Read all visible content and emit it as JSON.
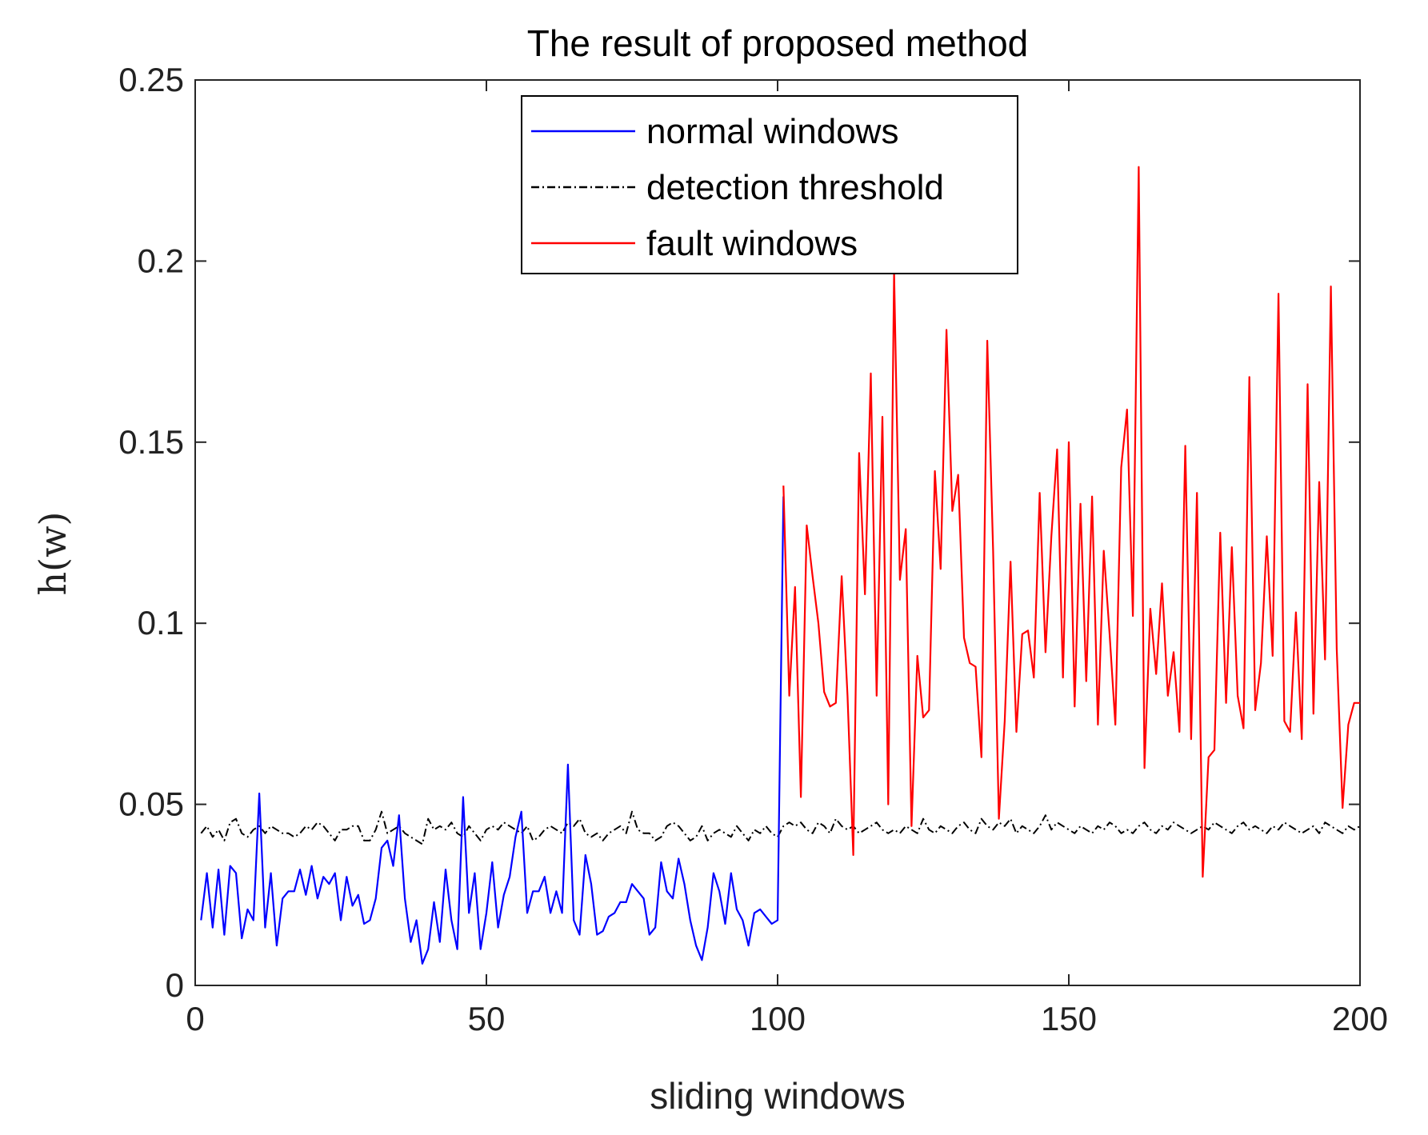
{
  "chart_data": {
    "type": "line",
    "title": "The result of proposed method",
    "xlabel": "sliding windows",
    "ylabel": "h(w)",
    "xlim": [
      0,
      200
    ],
    "ylim": [
      0,
      0.25
    ],
    "xticks": [
      0,
      50,
      100,
      150,
      200
    ],
    "xtick_labels": [
      "0",
      "50",
      "100",
      "150",
      "200"
    ],
    "yticks": [
      0,
      0.05,
      0.1,
      0.15,
      0.2,
      0.25
    ],
    "ytick_labels": [
      "0",
      "0.05",
      "0.1",
      "0.15",
      "0.2",
      "0.25"
    ],
    "legend_position": "top-center",
    "series": [
      {
        "name": "normal windows",
        "color": "#0000ff",
        "style": "solid",
        "x": [
          1,
          2,
          3,
          4,
          5,
          6,
          7,
          8,
          9,
          10,
          11,
          12,
          13,
          14,
          15,
          16,
          17,
          18,
          19,
          20,
          21,
          22,
          23,
          24,
          25,
          26,
          27,
          28,
          29,
          30,
          31,
          32,
          33,
          34,
          35,
          36,
          37,
          38,
          39,
          40,
          41,
          42,
          43,
          44,
          45,
          46,
          47,
          48,
          49,
          50,
          51,
          52,
          53,
          54,
          55,
          56,
          57,
          58,
          59,
          60,
          61,
          62,
          63,
          64,
          65,
          66,
          67,
          68,
          69,
          70,
          71,
          72,
          73,
          74,
          75,
          76,
          77,
          78,
          79,
          80,
          81,
          82,
          83,
          84,
          85,
          86,
          87,
          88,
          89,
          90,
          91,
          92,
          93,
          94,
          95,
          96,
          97,
          98,
          99,
          100,
          101
        ],
        "values": [
          0.018,
          0.031,
          0.016,
          0.032,
          0.014,
          0.033,
          0.031,
          0.013,
          0.021,
          0.018,
          0.053,
          0.016,
          0.031,
          0.011,
          0.024,
          0.026,
          0.026,
          0.032,
          0.025,
          0.033,
          0.024,
          0.03,
          0.028,
          0.031,
          0.018,
          0.03,
          0.022,
          0.025,
          0.017,
          0.018,
          0.024,
          0.038,
          0.04,
          0.033,
          0.047,
          0.024,
          0.012,
          0.018,
          0.006,
          0.01,
          0.023,
          0.012,
          0.032,
          0.018,
          0.01,
          0.052,
          0.02,
          0.031,
          0.01,
          0.02,
          0.034,
          0.016,
          0.025,
          0.03,
          0.041,
          0.048,
          0.02,
          0.026,
          0.026,
          0.03,
          0.02,
          0.026,
          0.02,
          0.061,
          0.018,
          0.014,
          0.036,
          0.028,
          0.014,
          0.015,
          0.019,
          0.02,
          0.023,
          0.023,
          0.028,
          0.026,
          0.024,
          0.014,
          0.016,
          0.034,
          0.026,
          0.024,
          0.035,
          0.028,
          0.018,
          0.011,
          0.007,
          0.016,
          0.031,
          0.026,
          0.017,
          0.031,
          0.021,
          0.018,
          0.011,
          0.02,
          0.021,
          0.019,
          0.017,
          0.018,
          0.135
        ]
      },
      {
        "name": "detection threshold",
        "color": "#000000",
        "style": "dashdot",
        "x": [
          1,
          2,
          3,
          4,
          5,
          6,
          7,
          8,
          9,
          10,
          11,
          12,
          13,
          14,
          15,
          16,
          17,
          18,
          19,
          20,
          21,
          22,
          23,
          24,
          25,
          26,
          27,
          28,
          29,
          30,
          31,
          32,
          33,
          34,
          35,
          36,
          37,
          38,
          39,
          40,
          41,
          42,
          43,
          44,
          45,
          46,
          47,
          48,
          49,
          50,
          51,
          52,
          53,
          54,
          55,
          56,
          57,
          58,
          59,
          60,
          61,
          62,
          63,
          64,
          65,
          66,
          67,
          68,
          69,
          70,
          71,
          72,
          73,
          74,
          75,
          76,
          77,
          78,
          79,
          80,
          81,
          82,
          83,
          84,
          85,
          86,
          87,
          88,
          89,
          90,
          91,
          92,
          93,
          94,
          95,
          96,
          97,
          98,
          99,
          100,
          101,
          102,
          103,
          104,
          105,
          106,
          107,
          108,
          109,
          110,
          111,
          112,
          113,
          114,
          115,
          116,
          117,
          118,
          119,
          120,
          121,
          122,
          123,
          124,
          125,
          126,
          127,
          128,
          129,
          130,
          131,
          132,
          133,
          134,
          135,
          136,
          137,
          138,
          139,
          140,
          141,
          142,
          143,
          144,
          145,
          146,
          147,
          148,
          149,
          150,
          151,
          152,
          153,
          154,
          155,
          156,
          157,
          158,
          159,
          160,
          161,
          162,
          163,
          164,
          165,
          166,
          167,
          168,
          169,
          170,
          171,
          172,
          173,
          174,
          175,
          176,
          177,
          178,
          179,
          180,
          181,
          182,
          183,
          184,
          185,
          186,
          187,
          188,
          189,
          190,
          191,
          192,
          193,
          194,
          195,
          196,
          197,
          198,
          199,
          200
        ],
        "values": [
          0.042,
          0.044,
          0.041,
          0.043,
          0.04,
          0.045,
          0.046,
          0.042,
          0.041,
          0.043,
          0.044,
          0.042,
          0.044,
          0.043,
          0.042,
          0.042,
          0.041,
          0.042,
          0.044,
          0.043,
          0.045,
          0.044,
          0.042,
          0.04,
          0.043,
          0.043,
          0.044,
          0.044,
          0.04,
          0.04,
          0.043,
          0.048,
          0.042,
          0.043,
          0.044,
          0.042,
          0.041,
          0.04,
          0.039,
          0.046,
          0.043,
          0.044,
          0.043,
          0.045,
          0.042,
          0.041,
          0.044,
          0.042,
          0.04,
          0.043,
          0.044,
          0.043,
          0.045,
          0.044,
          0.043,
          0.042,
          0.044,
          0.04,
          0.041,
          0.043,
          0.044,
          0.043,
          0.042,
          0.045,
          0.044,
          0.046,
          0.042,
          0.041,
          0.042,
          0.04,
          0.042,
          0.043,
          0.044,
          0.042,
          0.048,
          0.043,
          0.042,
          0.042,
          0.04,
          0.041,
          0.044,
          0.045,
          0.044,
          0.042,
          0.04,
          0.041,
          0.044,
          0.04,
          0.042,
          0.043,
          0.042,
          0.041,
          0.044,
          0.042,
          0.04,
          0.043,
          0.042,
          0.044,
          0.042,
          0.041,
          0.044,
          0.045,
          0.044,
          0.045,
          0.043,
          0.042,
          0.045,
          0.044,
          0.042,
          0.046,
          0.044,
          0.043,
          0.044,
          0.042,
          0.043,
          0.044,
          0.045,
          0.043,
          0.042,
          0.043,
          0.042,
          0.044,
          0.043,
          0.042,
          0.046,
          0.043,
          0.042,
          0.044,
          0.043,
          0.042,
          0.044,
          0.045,
          0.043,
          0.042,
          0.046,
          0.044,
          0.043,
          0.045,
          0.044,
          0.046,
          0.042,
          0.044,
          0.043,
          0.042,
          0.044,
          0.047,
          0.043,
          0.045,
          0.044,
          0.043,
          0.042,
          0.044,
          0.043,
          0.042,
          0.044,
          0.043,
          0.045,
          0.044,
          0.042,
          0.043,
          0.042,
          0.044,
          0.045,
          0.043,
          0.042,
          0.044,
          0.043,
          0.045,
          0.044,
          0.043,
          0.042,
          0.043,
          0.044,
          0.043,
          0.045,
          0.044,
          0.043,
          0.042,
          0.044,
          0.045,
          0.043,
          0.044,
          0.043,
          0.042,
          0.044,
          0.043,
          0.045,
          0.044,
          0.043,
          0.042,
          0.043,
          0.044,
          0.042,
          0.045,
          0.044,
          0.043,
          0.042,
          0.044,
          0.043,
          0.044
        ]
      },
      {
        "name": "fault windows",
        "color": "#ff0000",
        "style": "solid",
        "x": [
          101,
          102,
          103,
          104,
          105,
          106,
          107,
          108,
          109,
          110,
          111,
          112,
          113,
          114,
          115,
          116,
          117,
          118,
          119,
          120,
          121,
          122,
          123,
          124,
          125,
          126,
          127,
          128,
          129,
          130,
          131,
          132,
          133,
          134,
          135,
          136,
          137,
          138,
          139,
          140,
          141,
          142,
          143,
          144,
          145,
          146,
          147,
          148,
          149,
          150,
          151,
          152,
          153,
          154,
          155,
          156,
          157,
          158,
          159,
          160,
          161,
          162,
          163,
          164,
          165,
          166,
          167,
          168,
          169,
          170,
          171,
          172,
          173,
          174,
          175,
          176,
          177,
          178,
          179,
          180,
          181,
          182,
          183,
          184,
          185,
          186,
          187,
          188,
          189,
          190,
          191,
          192,
          193,
          194,
          195,
          196,
          197,
          198,
          199,
          200
        ],
        "values": [
          0.138,
          0.08,
          0.11,
          0.052,
          0.127,
          0.113,
          0.1,
          0.081,
          0.077,
          0.078,
          0.113,
          0.08,
          0.036,
          0.147,
          0.108,
          0.169,
          0.08,
          0.157,
          0.05,
          0.197,
          0.112,
          0.126,
          0.044,
          0.091,
          0.074,
          0.076,
          0.142,
          0.115,
          0.181,
          0.131,
          0.141,
          0.096,
          0.089,
          0.088,
          0.063,
          0.178,
          0.12,
          0.046,
          0.073,
          0.117,
          0.07,
          0.097,
          0.098,
          0.085,
          0.136,
          0.092,
          0.124,
          0.148,
          0.085,
          0.15,
          0.077,
          0.133,
          0.084,
          0.135,
          0.072,
          0.12,
          0.097,
          0.072,
          0.143,
          0.159,
          0.102,
          0.226,
          0.06,
          0.104,
          0.086,
          0.111,
          0.08,
          0.092,
          0.07,
          0.149,
          0.068,
          0.136,
          0.03,
          0.063,
          0.065,
          0.125,
          0.078,
          0.121,
          0.08,
          0.071,
          0.168,
          0.076,
          0.089,
          0.124,
          0.091,
          0.191,
          0.073,
          0.07,
          0.103,
          0.068,
          0.166,
          0.075,
          0.139,
          0.09,
          0.193,
          0.093,
          0.049,
          0.072,
          0.078,
          0.078
        ]
      }
    ]
  }
}
